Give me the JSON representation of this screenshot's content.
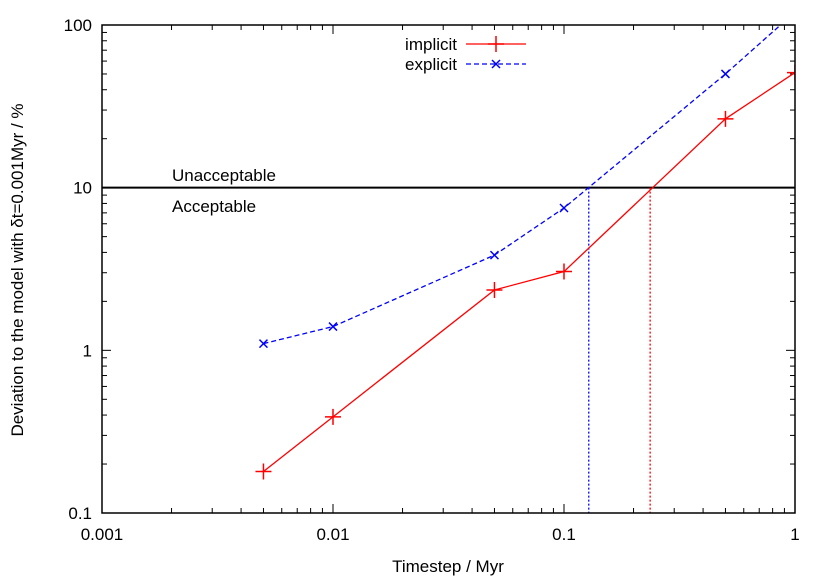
{
  "chart_data": {
    "type": "line",
    "xlabel": "Timestep / Myr",
    "ylabel": "Deviation to the model with δt=0.001Myr / %",
    "xscale": "log",
    "yscale": "log",
    "xlim": [
      0.001,
      1
    ],
    "ylim": [
      0.1,
      100
    ],
    "x_ticks": [
      "0.001",
      "0.01",
      "0.1",
      "1"
    ],
    "y_ticks": [
      "0.1",
      "1",
      "10",
      "100"
    ],
    "grid": false,
    "legend_position": "top-center",
    "series": [
      {
        "name": "implicit",
        "color": "#ff0000",
        "style": "solid",
        "marker": "plus",
        "x": [
          0.005,
          0.01,
          0.05,
          0.1,
          0.5,
          1
        ],
        "y": [
          0.18,
          0.39,
          2.35,
          3.05,
          26.5,
          51
        ]
      },
      {
        "name": "explicit",
        "color": "#0000ff",
        "style": "dashed",
        "marker": "cross",
        "x": [
          0.005,
          0.01,
          0.05,
          0.1,
          0.5,
          1
        ],
        "y": [
          1.1,
          1.4,
          3.85,
          7.5,
          50,
          120
        ]
      }
    ],
    "threshold": {
      "y": 10,
      "color": "#000000",
      "label_above": "Unacceptable",
      "label_below": "Acceptable"
    },
    "vertical_markers": [
      {
        "x": 0.236,
        "color": "#ff0000",
        "style": "dotted"
      },
      {
        "x": 0.128,
        "color": "#0000ff",
        "style": "dotted"
      }
    ]
  }
}
